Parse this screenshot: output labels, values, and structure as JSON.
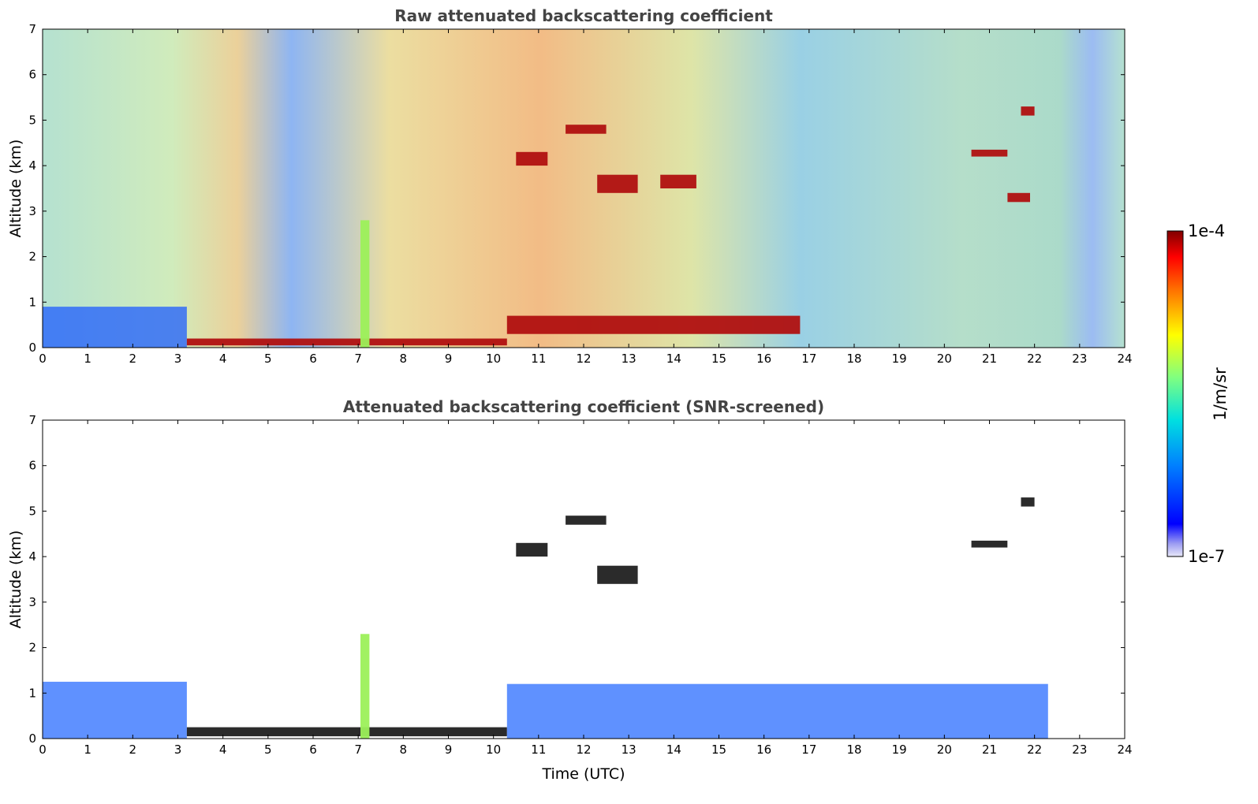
{
  "chart_data": [
    {
      "type": "heatmap",
      "title": "Raw attenuated backscattering coefficient",
      "xlabel": "",
      "ylabel": "Altitude (km)",
      "xlim": [
        0,
        24
      ],
      "ylim": [
        0,
        7
      ],
      "xticks": [
        "0",
        "1",
        "2",
        "3",
        "4",
        "5",
        "6",
        "7",
        "8",
        "9",
        "10",
        "11",
        "12",
        "13",
        "14",
        "15",
        "16",
        "17",
        "18",
        "19",
        "20",
        "21",
        "22",
        "23",
        "24"
      ],
      "yticks": [
        "0",
        "1",
        "2",
        "3",
        "4",
        "5",
        "6",
        "7"
      ],
      "features": [
        {
          "name": "boundary-layer",
          "hours": [
            0,
            3.2
          ],
          "altitude_km": [
            0,
            0.9
          ],
          "level": "low"
        },
        {
          "name": "surface-layer",
          "hours": [
            3.2,
            10.3
          ],
          "altitude_km": [
            0.05,
            0.2
          ],
          "level": "high"
        },
        {
          "name": "convective-plume",
          "hours": [
            7.05,
            7.25
          ],
          "altitude_km": [
            0,
            2.8
          ],
          "level": "medium"
        },
        {
          "name": "boundary-layer-top",
          "hours": [
            10.3,
            16.8
          ],
          "altitude_km": [
            0.3,
            0.7
          ],
          "level": "high"
        },
        {
          "name": "cloud-layer",
          "hours": [
            10.5,
            11.2
          ],
          "altitude_km": [
            4.0,
            4.3
          ],
          "level": "high"
        },
        {
          "name": "cloud-layer",
          "hours": [
            11.6,
            12.5
          ],
          "altitude_km": [
            4.7,
            4.9
          ],
          "level": "high"
        },
        {
          "name": "cloud-layer",
          "hours": [
            12.3,
            13.2
          ],
          "altitude_km": [
            3.4,
            3.8
          ],
          "level": "high"
        },
        {
          "name": "cloud-layer",
          "hours": [
            13.7,
            14.5
          ],
          "altitude_km": [
            3.5,
            3.8
          ],
          "level": "high"
        },
        {
          "name": "cloud-layer",
          "hours": [
            20.6,
            21.4
          ],
          "altitude_km": [
            4.2,
            4.35
          ],
          "level": "high"
        },
        {
          "name": "cloud-layer",
          "hours": [
            21.7,
            22.0
          ],
          "altitude_km": [
            5.1,
            5.3
          ],
          "level": "high"
        },
        {
          "name": "cloud-layer",
          "hours": [
            21.4,
            21.9
          ],
          "altitude_km": [
            3.2,
            3.4
          ],
          "level": "high"
        }
      ]
    },
    {
      "type": "heatmap",
      "title": "Attenuated backscattering coefficient (SNR-screened)",
      "xlabel": "Time (UTC)",
      "ylabel": "Altitude (km)",
      "xlim": [
        0,
        24
      ],
      "ylim": [
        0,
        7
      ],
      "xticks": [
        "0",
        "1",
        "2",
        "3",
        "4",
        "5",
        "6",
        "7",
        "8",
        "9",
        "10",
        "11",
        "12",
        "13",
        "14",
        "15",
        "16",
        "17",
        "18",
        "19",
        "20",
        "21",
        "22",
        "23",
        "24"
      ],
      "yticks": [
        "0",
        "1",
        "2",
        "3",
        "4",
        "5",
        "6",
        "7"
      ],
      "features": [
        {
          "name": "boundary-layer",
          "hours": [
            0,
            3.2
          ],
          "altitude_km": [
            0,
            1.25
          ],
          "level": "low"
        },
        {
          "name": "surface-layer",
          "hours": [
            3.2,
            10.3
          ],
          "altitude_km": [
            0.05,
            0.25
          ],
          "level": "high"
        },
        {
          "name": "convective-plume",
          "hours": [
            7.05,
            7.25
          ],
          "altitude_km": [
            0,
            2.3
          ],
          "level": "medium"
        },
        {
          "name": "boundary-layer",
          "hours": [
            10.3,
            22.3
          ],
          "altitude_km": [
            0,
            1.2
          ],
          "level": "low"
        },
        {
          "name": "cloud-layer",
          "hours": [
            10.5,
            11.2
          ],
          "altitude_km": [
            4.0,
            4.3
          ],
          "level": "high"
        },
        {
          "name": "cloud-layer",
          "hours": [
            11.6,
            12.5
          ],
          "altitude_km": [
            4.7,
            4.9
          ],
          "level": "high"
        },
        {
          "name": "cloud-layer",
          "hours": [
            12.3,
            13.2
          ],
          "altitude_km": [
            3.4,
            3.8
          ],
          "level": "high"
        },
        {
          "name": "cloud-layer",
          "hours": [
            20.6,
            21.4
          ],
          "altitude_km": [
            4.2,
            4.35
          ],
          "level": "high"
        },
        {
          "name": "cloud-layer",
          "hours": [
            21.7,
            22.0
          ],
          "altitude_km": [
            5.1,
            5.3
          ],
          "level": "high"
        }
      ]
    }
  ],
  "colorbar": {
    "label": "1/m/sr",
    "max_label": "1e-4",
    "min_label": "1e-7",
    "colormap": "jet"
  },
  "colors": {
    "title": "#444444",
    "axis": "#000000",
    "background": "#ffffff"
  }
}
